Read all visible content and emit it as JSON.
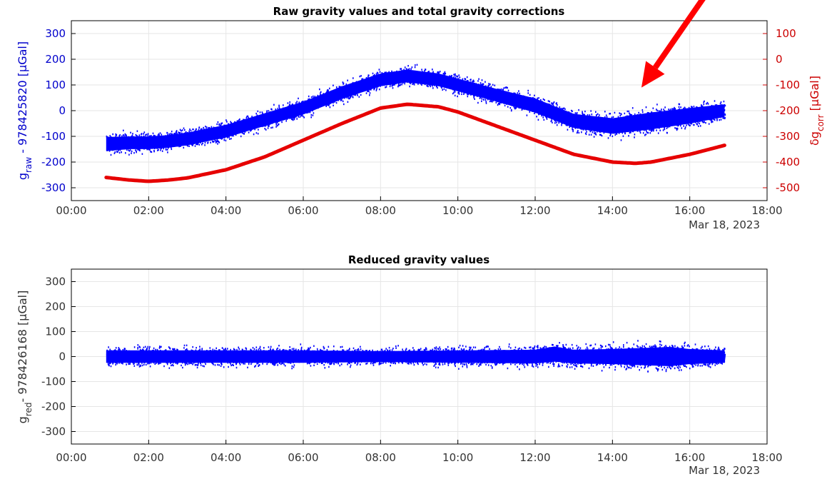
{
  "chart_data": [
    {
      "type": "scatter",
      "title": "Raw gravity values and total gravity corrections",
      "ylabel_left": {
        "base": "g",
        "sub": "raw",
        "rest": " - 978425820 [μGal]"
      },
      "ylabel_right": {
        "pre": "δg",
        "sub": "corr",
        "rest": " [μGal]"
      },
      "x_ticks": [
        "00:00",
        "02:00",
        "04:00",
        "06:00",
        "08:00",
        "10:00",
        "12:00",
        "14:00",
        "16:00",
        "18:00"
      ],
      "x_date": "Mar 18, 2023",
      "xlim_hours": [
        0,
        18
      ],
      "ylim_left": [
        -350,
        350
      ],
      "yticks_left": [
        300,
        200,
        100,
        0,
        -100,
        -200,
        -300
      ],
      "ylim_right": [
        -550,
        150
      ],
      "yticks_right": [
        100,
        0,
        -100,
        -200,
        -300,
        -400,
        -500
      ],
      "grid": true,
      "series": [
        {
          "axis": "left",
          "color": "#0000ff",
          "x_hours": [
            0.9,
            1.5,
            2.0,
            2.5,
            3.0,
            4.0,
            5.0,
            6.0,
            7.0,
            8.0,
            8.7,
            9.5,
            10.0,
            11.0,
            12.0,
            13.0,
            14.0,
            15.0,
            16.0,
            16.9
          ],
          "y_center": [
            -130,
            -125,
            -125,
            -120,
            -110,
            -80,
            -35,
            10,
            70,
            120,
            135,
            120,
            100,
            60,
            20,
            -40,
            -60,
            -40,
            -20,
            0
          ],
          "y_spread": [
            50,
            45,
            45,
            45,
            45,
            45,
            45,
            45,
            45,
            45,
            45,
            45,
            45,
            45,
            50,
            50,
            55,
            60,
            55,
            45
          ]
        },
        {
          "axis": "right",
          "color": "#e60000",
          "x_hours": [
            0.9,
            1.5,
            2.0,
            2.5,
            3.0,
            4.0,
            5.0,
            6.0,
            7.0,
            8.0,
            8.7,
            9.5,
            10.0,
            11.0,
            12.0,
            13.0,
            14.0,
            14.6,
            15.0,
            16.0,
            16.9
          ],
          "y": [
            -460,
            -470,
            -475,
            -470,
            -462,
            -430,
            -380,
            -315,
            -250,
            -190,
            -175,
            -185,
            -205,
            -260,
            -315,
            -370,
            -400,
            -405,
            -400,
            -370,
            -335
          ]
        }
      ],
      "annotation": {
        "type": "arrow",
        "color": "#ff0000",
        "target_x_hours": 14.75,
        "target_y": 90,
        "start_x_hours": 16.5,
        "start_y": 470
      }
    },
    {
      "type": "scatter",
      "title": "Reduced gravity values",
      "ylabel": {
        "base": "g",
        "sub": "red",
        "rest": "- 978426168 [μGal]"
      },
      "x_ticks": [
        "00:00",
        "02:00",
        "04:00",
        "06:00",
        "08:00",
        "10:00",
        "12:00",
        "14:00",
        "16:00",
        "18:00"
      ],
      "x_date": "Mar 18, 2023",
      "xlim_hours": [
        0,
        18
      ],
      "ylim": [
        -350,
        350
      ],
      "yticks": [
        300,
        200,
        100,
        0,
        -100,
        -200,
        -300
      ],
      "grid": true,
      "series": [
        {
          "color": "#0000ff",
          "x_hours": [
            0.9,
            2.0,
            4.0,
            6.0,
            8.0,
            10.0,
            12.0,
            12.5,
            13.0,
            14.0,
            15.0,
            15.5,
            16.0,
            16.9
          ],
          "y_center": [
            0,
            0,
            0,
            0,
            0,
            0,
            0,
            10,
            0,
            0,
            0,
            0,
            0,
            0
          ],
          "y_spread": [
            45,
            45,
            45,
            45,
            40,
            45,
            50,
            55,
            50,
            55,
            65,
            70,
            55,
            45
          ]
        }
      ]
    }
  ]
}
